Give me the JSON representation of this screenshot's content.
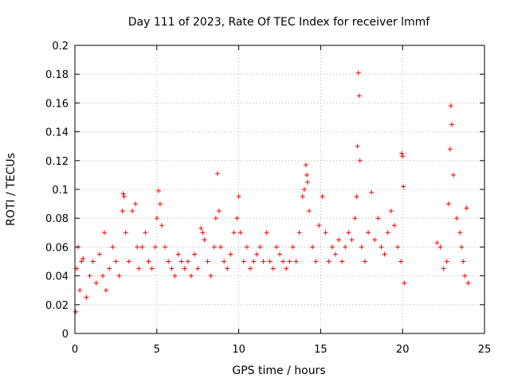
{
  "chart_data": {
    "type": "scatter",
    "title": "Day 111 of 2023, Rate Of TEC Index for receiver lmmf",
    "xlabel": "GPS time / hours",
    "ylabel": "ROTI / TECUs",
    "xlim": [
      0,
      25
    ],
    "ylim": [
      0,
      0.2
    ],
    "xticks": [
      "0",
      "5",
      "10",
      "15",
      "20",
      "25"
    ],
    "yticks": [
      "0",
      "0.02",
      "0.04",
      "0.06",
      "0.08",
      "0.1",
      "0.12",
      "0.14",
      "0.16",
      "0.18",
      "0.2"
    ],
    "grid": true,
    "marker": "+",
    "color": "#ff0000",
    "series": [
      {
        "x": [
          0.05,
          0.1,
          0.2,
          0.3,
          0.4,
          0.5,
          0.7,
          0.9,
          1.1,
          1.3,
          1.5,
          1.7,
          1.8,
          1.9,
          2.1,
          2.3,
          2.5,
          2.7,
          2.9,
          2.95,
          3.0,
          3.1,
          3.3,
          3.5,
          3.7,
          3.8,
          3.9,
          4.1,
          4.3,
          4.5,
          4.7,
          4.9,
          5.0,
          5.1,
          5.2,
          5.3,
          5.5,
          5.7,
          5.9,
          6.1,
          6.3,
          6.5,
          6.7,
          6.9,
          7.1,
          7.3,
          7.5,
          7.7,
          7.8,
          7.9,
          8.1,
          8.3,
          8.5,
          8.6,
          8.7,
          8.8,
          8.9,
          9.1,
          9.3,
          9.5,
          9.7,
          9.9,
          10.0,
          10.1,
          10.3,
          10.5,
          10.7,
          10.9,
          11.1,
          11.3,
          11.5,
          11.7,
          11.9,
          12.1,
          12.3,
          12.5,
          12.7,
          12.9,
          13.1,
          13.3,
          13.5,
          13.7,
          13.9,
          14.0,
          14.1,
          14.15,
          14.2,
          14.3,
          14.5,
          14.7,
          14.9,
          15.1,
          15.3,
          15.5,
          15.7,
          15.9,
          16.1,
          16.3,
          16.5,
          16.7,
          16.9,
          17.1,
          17.2,
          17.25,
          17.3,
          17.35,
          17.4,
          17.5,
          17.7,
          17.9,
          18.1,
          18.3,
          18.5,
          18.7,
          18.9,
          19.1,
          19.3,
          19.5,
          19.7,
          19.9,
          19.95,
          20.0,
          20.05,
          20.1,
          22.1,
          22.3,
          22.5,
          22.7,
          22.8,
          22.9,
          22.95,
          23.0,
          23.1,
          23.3,
          23.5,
          23.6,
          23.7,
          23.8,
          23.9,
          24.0
        ],
        "y": [
          0.015,
          0.045,
          0.06,
          0.03,
          0.05,
          0.052,
          0.025,
          0.04,
          0.05,
          0.035,
          0.055,
          0.04,
          0.07,
          0.03,
          0.045,
          0.06,
          0.05,
          0.04,
          0.085,
          0.097,
          0.095,
          0.07,
          0.05,
          0.085,
          0.09,
          0.06,
          0.045,
          0.06,
          0.07,
          0.05,
          0.045,
          0.06,
          0.08,
          0.099,
          0.09,
          0.075,
          0.06,
          0.05,
          0.045,
          0.04,
          0.055,
          0.05,
          0.045,
          0.05,
          0.04,
          0.055,
          0.045,
          0.073,
          0.07,
          0.065,
          0.05,
          0.04,
          0.06,
          0.08,
          0.111,
          0.085,
          0.06,
          0.05,
          0.045,
          0.055,
          0.07,
          0.08,
          0.095,
          0.07,
          0.05,
          0.06,
          0.045,
          0.05,
          0.055,
          0.06,
          0.05,
          0.07,
          0.05,
          0.045,
          0.06,
          0.055,
          0.05,
          0.045,
          0.05,
          0.06,
          0.05,
          0.07,
          0.095,
          0.1,
          0.117,
          0.11,
          0.105,
          0.085,
          0.06,
          0.05,
          0.075,
          0.095,
          0.07,
          0.05,
          0.06,
          0.055,
          0.065,
          0.05,
          0.06,
          0.07,
          0.065,
          0.08,
          0.095,
          0.13,
          0.181,
          0.165,
          0.12,
          0.06,
          0.05,
          0.07,
          0.098,
          0.065,
          0.08,
          0.06,
          0.055,
          0.07,
          0.085,
          0.075,
          0.06,
          0.05,
          0.125,
          0.123,
          0.102,
          0.035,
          0.063,
          0.06,
          0.045,
          0.05,
          0.09,
          0.128,
          0.158,
          0.145,
          0.11,
          0.08,
          0.07,
          0.06,
          0.05,
          0.04,
          0.087,
          0.035
        ]
      }
    ]
  }
}
